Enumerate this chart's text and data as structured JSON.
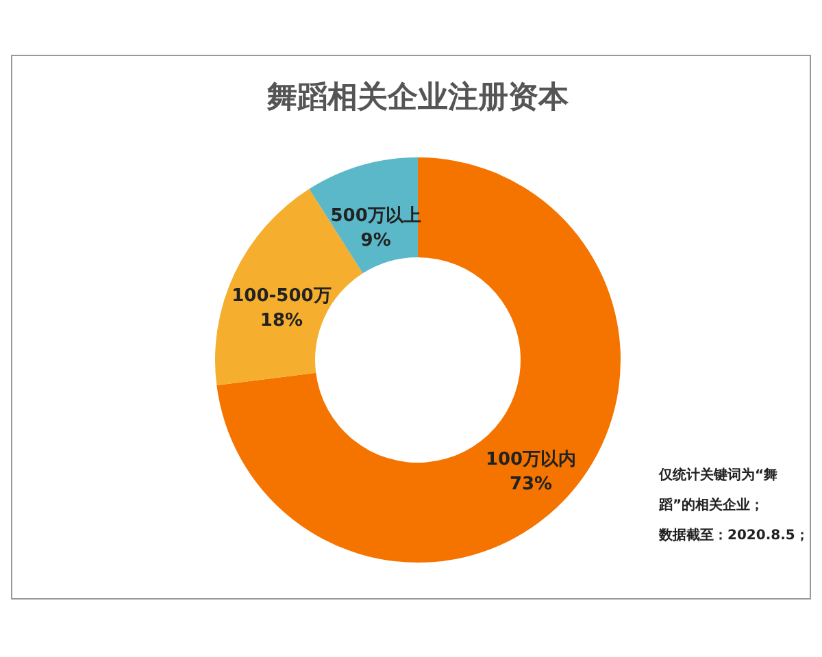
{
  "chart_data": {
    "type": "donut",
    "title": "舞蹈相关企业注册资本",
    "categories": [
      "100万以内",
      "100-500万",
      "500万以上"
    ],
    "values": [
      73,
      18,
      9
    ],
    "value_labels": [
      "73%",
      "18%",
      "9%"
    ],
    "colors": [
      "#f57400",
      "#f5ae2e",
      "#5bb8c9"
    ],
    "annotations": [
      "仅统计关键词为“舞蹈”的相关企业；",
      "数据截至：2020.8.5；"
    ]
  }
}
